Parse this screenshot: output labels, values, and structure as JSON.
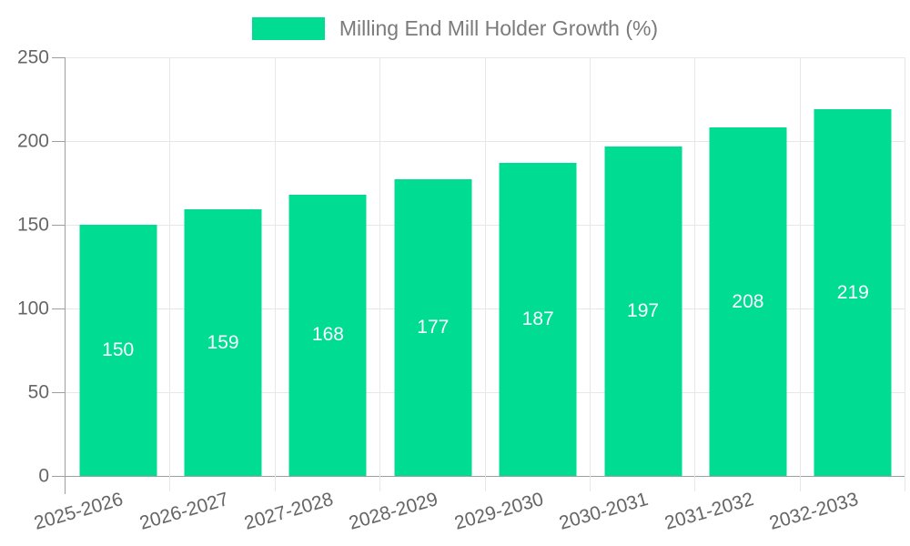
{
  "chart_data": {
    "type": "bar",
    "title": "",
    "legend_label": "Milling End Mill Holder Growth (%)",
    "legend_position": "top-center",
    "categories": [
      "2025-2026",
      "2026-2027",
      "2027-2028",
      "2028-2029",
      "2029-2030",
      "2030-2031",
      "2031-2032",
      "2032-2033"
    ],
    "values": [
      150,
      159,
      168,
      177,
      187,
      197,
      208,
      219
    ],
    "xlabel": "",
    "ylabel": "",
    "ylim": [
      0,
      250
    ],
    "yticks": [
      0,
      50,
      100,
      150,
      200,
      250
    ],
    "grid": true,
    "colors": {
      "bar": "#00DC92",
      "bar_label": "#FFFFFF",
      "axis_line": "#9E9E9E",
      "gridline": "#E7E7E7",
      "tick_label": "#666666",
      "legend_text": "#7B7B7B",
      "background": "#FFFFFF"
    }
  }
}
